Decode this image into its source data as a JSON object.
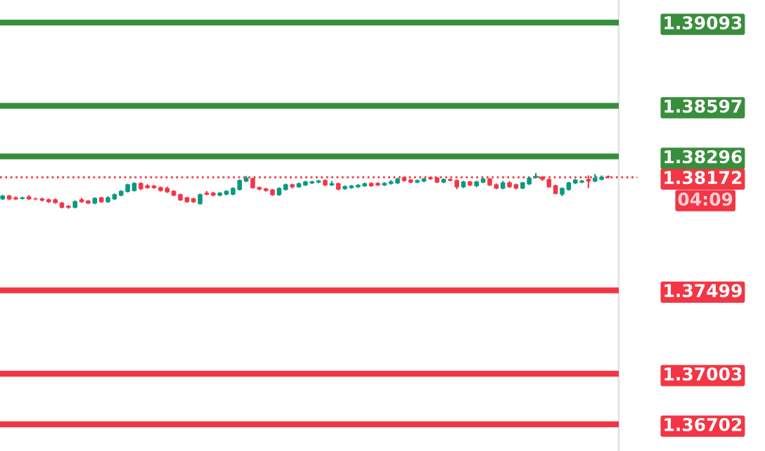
{
  "chart_data": {
    "type": "candlestick",
    "categories": [
      null,
      null,
      null,
      null,
      null,
      null,
      null,
      null,
      null,
      null,
      null,
      null,
      null,
      null,
      null,
      null,
      null,
      null,
      null,
      null,
      null,
      null,
      null,
      null,
      null,
      null,
      null,
      null,
      null,
      null,
      null,
      null,
      null,
      null,
      null,
      null,
      null,
      null,
      null,
      null,
      null,
      null,
      null,
      null,
      null,
      null,
      null,
      null,
      null,
      null,
      null,
      null,
      null,
      null,
      null,
      null,
      null,
      null,
      null,
      null,
      null,
      null,
      null,
      null,
      null,
      null,
      null,
      null,
      null,
      null,
      null,
      null,
      null,
      null,
      null,
      null,
      null,
      null,
      null,
      null,
      null,
      null,
      null,
      null,
      null,
      null,
      null,
      null,
      null,
      null,
      null,
      null,
      null
    ],
    "ohlc": [
      [
        1.38041,
        1.38067,
        1.38037,
        1.38063
      ],
      [
        1.38063,
        1.38067,
        1.38037,
        1.38041
      ],
      [
        1.38052,
        1.38058,
        1.38037,
        1.38041
      ],
      [
        1.38044,
        1.38056,
        1.3804,
        1.38052
      ],
      [
        1.38058,
        1.38066,
        1.38037,
        1.38041
      ],
      [
        1.38046,
        1.3805,
        1.38037,
        1.38041
      ],
      [
        1.38046,
        1.3805,
        1.38029,
        1.38033
      ],
      [
        1.38041,
        1.38045,
        1.3802,
        1.38024
      ],
      [
        1.38041,
        1.38045,
        1.38015,
        1.38019
      ],
      [
        1.38021,
        1.38025,
        1.37987,
        1.37991
      ],
      [
        1.38002,
        1.38006,
        1.37985,
        1.37991
      ],
      [
        1.37991,
        1.38034,
        1.37987,
        1.3803
      ],
      [
        1.38041,
        1.3805,
        1.3802,
        1.38024
      ],
      [
        1.38033,
        1.38037,
        1.38012,
        1.38016
      ],
      [
        1.38016,
        1.38053,
        1.38012,
        1.38049
      ],
      [
        1.38052,
        1.38056,
        1.3802,
        1.38024
      ],
      [
        1.38024,
        1.3806,
        1.3802,
        1.38052
      ],
      [
        1.38041,
        1.38075,
        1.38037,
        1.38071
      ],
      [
        1.38063,
        1.38095,
        1.38059,
        1.38091
      ],
      [
        1.38085,
        1.38134,
        1.38081,
        1.3813
      ],
      [
        1.38091,
        1.38142,
        1.38087,
        1.38138
      ],
      [
        1.38138,
        1.38142,
        1.38095,
        1.38102
      ],
      [
        1.38124,
        1.3813,
        1.38104,
        1.38108
      ],
      [
        1.38122,
        1.38126,
        1.38104,
        1.38108
      ],
      [
        1.38113,
        1.38117,
        1.38087,
        1.38091
      ],
      [
        1.38108,
        1.38116,
        1.38079,
        1.38083
      ],
      [
        1.38091,
        1.38095,
        1.38059,
        1.38063
      ],
      [
        1.38071,
        1.38075,
        1.38031,
        1.38035
      ],
      [
        1.38052,
        1.38056,
        1.3802,
        1.38024
      ],
      [
        1.38046,
        1.3805,
        1.3802,
        1.38024
      ],
      [
        1.38013,
        1.38075,
        1.38009,
        1.38071
      ],
      [
        1.3808,
        1.3809,
        1.38065,
        1.38069
      ],
      [
        1.3808,
        1.38086,
        1.38059,
        1.38063
      ],
      [
        1.38063,
        1.38084,
        1.38059,
        1.3808
      ],
      [
        1.38069,
        1.38095,
        1.38065,
        1.38091
      ],
      [
        1.38069,
        1.38112,
        1.38065,
        1.38108
      ],
      [
        1.38097,
        1.38159,
        1.38093,
        1.38155
      ],
      [
        1.38147,
        1.3818,
        1.38143,
        1.38169
      ],
      [
        1.38166,
        1.3817,
        1.38104,
        1.38108
      ],
      [
        1.38113,
        1.38117,
        1.38095,
        1.38099
      ],
      [
        1.38105,
        1.38109,
        1.38087,
        1.38091
      ],
      [
        1.38099,
        1.38103,
        1.38062,
        1.38066
      ],
      [
        1.38066,
        1.38112,
        1.38062,
        1.38108
      ],
      [
        1.38097,
        1.38134,
        1.38093,
        1.3813
      ],
      [
        1.3813,
        1.38134,
        1.38105,
        1.38113
      ],
      [
        1.38113,
        1.3814,
        1.38109,
        1.38136
      ],
      [
        1.38124,
        1.38151,
        1.3812,
        1.38147
      ],
      [
        1.38136,
        1.38151,
        1.38132,
        1.38147
      ],
      [
        1.38141,
        1.38156,
        1.38137,
        1.38152
      ],
      [
        1.38155,
        1.38159,
        1.3812,
        1.38124
      ],
      [
        1.38124,
        1.3815,
        1.3812,
        1.38136
      ],
      [
        1.38136,
        1.3814,
        1.38095,
        1.38099
      ],
      [
        1.38102,
        1.38123,
        1.38098,
        1.38119
      ],
      [
        1.38108,
        1.38126,
        1.38104,
        1.38122
      ],
      [
        1.38113,
        1.38131,
        1.38109,
        1.38127
      ],
      [
        1.38119,
        1.3814,
        1.38115,
        1.38136
      ],
      [
        1.38138,
        1.38142,
        1.38115,
        1.38119
      ],
      [
        1.38138,
        1.38142,
        1.3812,
        1.38124
      ],
      [
        1.38124,
        1.38142,
        1.3812,
        1.38138
      ],
      [
        1.38133,
        1.38155,
        1.38129,
        1.38147
      ],
      [
        1.38136,
        1.38168,
        1.38132,
        1.38164
      ],
      [
        1.38172,
        1.38176,
        1.38146,
        1.3815
      ],
      [
        1.38158,
        1.38162,
        1.38137,
        1.38141
      ],
      [
        1.38141,
        1.38159,
        1.38137,
        1.38155
      ],
      [
        1.38147,
        1.38168,
        1.38143,
        1.38164
      ],
      [
        1.38172,
        1.38176,
        1.38157,
        1.38161
      ],
      [
        1.38169,
        1.38173,
        1.38137,
        1.38141
      ],
      [
        1.38141,
        1.38165,
        1.38137,
        1.38161
      ],
      [
        1.38161,
        1.38165,
        1.38148,
        1.38152
      ],
      [
        1.38155,
        1.38159,
        1.38102,
        1.38113
      ],
      [
        1.38113,
        1.38151,
        1.38108,
        1.38147
      ],
      [
        1.38147,
        1.38151,
        1.3812,
        1.38124
      ],
      [
        1.38119,
        1.38151,
        1.38113,
        1.38147
      ],
      [
        1.38141,
        1.38168,
        1.38137,
        1.38164
      ],
      [
        1.38164,
        1.38168,
        1.3812,
        1.38124
      ],
      [
        1.3813,
        1.38134,
        1.38101,
        1.38105
      ],
      [
        1.38105,
        1.3815,
        1.38101,
        1.38141
      ],
      [
        1.38141,
        1.3815,
        1.38109,
        1.38113
      ],
      [
        1.3813,
        1.38134,
        1.38101,
        1.38105
      ],
      [
        1.38105,
        1.38145,
        1.38101,
        1.38141
      ],
      [
        1.3813,
        1.38173,
        1.38126,
        1.38169
      ],
      [
        1.38169,
        1.38197,
        1.38165,
        1.3818
      ],
      [
        1.38175,
        1.38179,
        1.3815,
        1.38158
      ],
      [
        1.38161,
        1.38165,
        1.38109,
        1.38113
      ],
      [
        1.38124,
        1.38128,
        1.3807,
        1.38074
      ],
      [
        1.38069,
        1.38112,
        1.3806,
        1.38108
      ],
      [
        1.38097,
        1.38145,
        1.38093,
        1.38141
      ],
      [
        1.38136,
        1.38162,
        1.38132,
        1.38158
      ],
      [
        1.38141,
        1.38156,
        1.38137,
        1.38152
      ],
      [
        1.38161,
        1.38183,
        1.38108,
        1.38147
      ],
      [
        1.38147,
        1.38191,
        1.38143,
        1.38169
      ],
      [
        1.38158,
        1.38183,
        1.38154,
        1.38175
      ],
      [
        1.38178,
        1.38183,
        1.38165,
        1.38172
      ]
    ],
    "colors": [
      "#089981",
      "#f23645",
      "#f23645",
      "#089981",
      "#f23645",
      "#f23645",
      "#f23645",
      "#f23645",
      "#f23645",
      "#f23645",
      "#f23645",
      "#089981",
      "#f23645",
      "#f23645",
      "#089981",
      "#f23645",
      "#089981",
      "#089981",
      "#089981",
      "#089981",
      "#089981",
      "#f23645",
      "#f23645",
      "#f23645",
      "#f23645",
      "#f23645",
      "#f23645",
      "#f23645",
      "#f23645",
      "#f23645",
      "#089981",
      "#f23645",
      "#f23645",
      "#089981",
      "#089981",
      "#089981",
      "#089981",
      "#089981",
      "#f23645",
      "#f23645",
      "#f23645",
      "#f23645",
      "#089981",
      "#089981",
      "#f23645",
      "#089981",
      "#089981",
      "#089981",
      "#089981",
      "#f23645",
      "#089981",
      "#f23645",
      "#089981",
      "#089981",
      "#089981",
      "#089981",
      "#f23645",
      "#f23645",
      "#089981",
      "#089981",
      "#089981",
      "#f23645",
      "#f23645",
      "#089981",
      "#089981",
      "#f23645",
      "#f23645",
      "#089981",
      "#f23645",
      "#f23645",
      "#089981",
      "#f23645",
      "#089981",
      "#089981",
      "#f23645",
      "#f23645",
      "#089981",
      "#f23645",
      "#f23645",
      "#089981",
      "#089981",
      "#089981",
      "#f23645",
      "#f23645",
      "#f23645",
      "#089981",
      "#089981",
      "#089981",
      "#089981",
      "#f23645",
      "#089981",
      "#089981",
      "#f23645"
    ],
    "ylim": [
      1.36543,
      1.39227
    ],
    "yticks": [
      1.36702,
      1.37003,
      1.37499,
      1.38172,
      1.38296,
      1.38597,
      1.39093
    ],
    "ref_lines": [
      {
        "axis": "y",
        "value": 1.39093,
        "color": "#388e3c",
        "line_style": "solid"
      },
      {
        "axis": "y",
        "value": 1.38597,
        "color": "#388e3c",
        "line_style": "solid"
      },
      {
        "axis": "y",
        "value": 1.38296,
        "color": "#388e3c",
        "line_style": "solid"
      },
      {
        "axis": "y",
        "value": 1.37499,
        "color": "#f23645",
        "line_style": "solid"
      },
      {
        "axis": "y",
        "value": 1.37003,
        "color": "#f23645",
        "line_style": "solid"
      },
      {
        "axis": "y",
        "value": 1.36702,
        "color": "#f23645",
        "line_style": "solid"
      },
      {
        "axis": "y",
        "value": 1.38172,
        "color": "#f23645",
        "line_style": "dotted"
      }
    ],
    "annotations": [
      "04:09"
    ]
  }
}
